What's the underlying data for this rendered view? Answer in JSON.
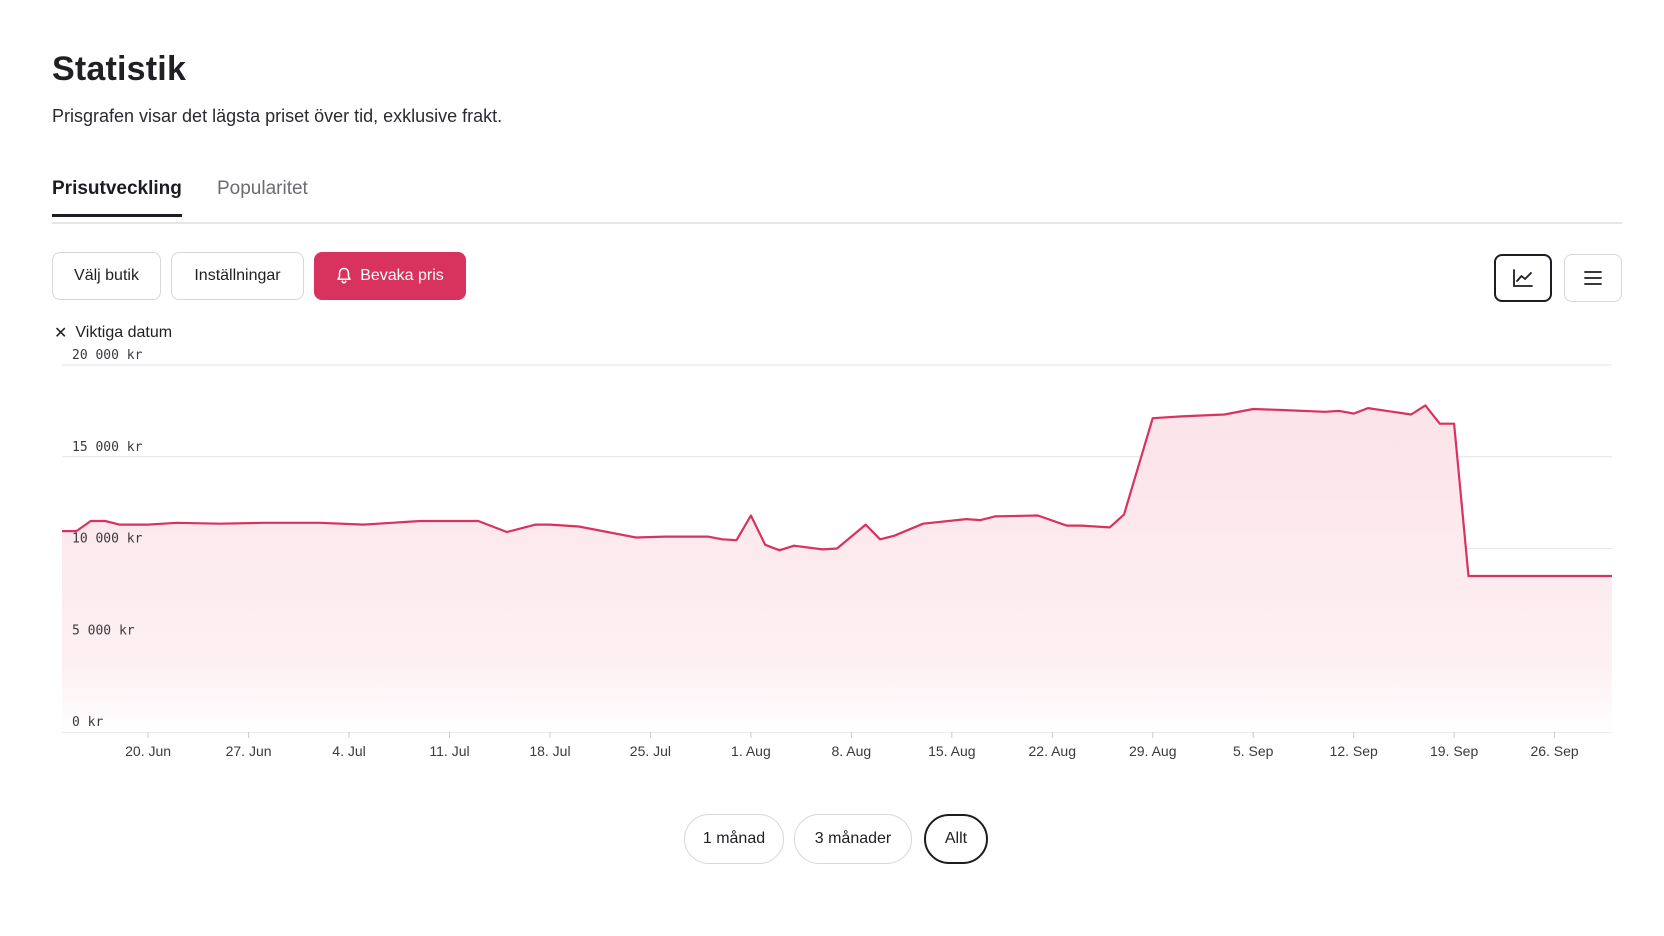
{
  "header": {
    "title": "Statistik",
    "subtitle": "Prisgrafen visar det lägsta priset över tid, exklusive frakt."
  },
  "tabs": [
    {
      "label": "Prisutveckling",
      "active": true
    },
    {
      "label": "Popularitet",
      "active": false
    }
  ],
  "toolbar": {
    "store_label": "Välj butik",
    "settings_label": "Inställningar",
    "watch_label": "Bevaka pris",
    "watch_color": "#d8335f",
    "view_icons": [
      "line-chart-icon",
      "list-icon"
    ],
    "active_view": "line-chart-icon"
  },
  "legend_toggle": {
    "icon": "close-icon",
    "label": "Viktiga datum"
  },
  "chart_data": {
    "type": "area",
    "color": "#d8335f",
    "fill_color": "#fbe4ea",
    "grid": true,
    "ylim": [
      0,
      20000
    ],
    "y_ticks": [
      0,
      5000,
      10000,
      15000,
      20000
    ],
    "y_tick_labels": [
      "0 kr",
      "5 000 kr",
      "10 000 kr",
      "15 000 kr",
      "20 000 kr"
    ],
    "x_range": [
      "2023-06-14",
      "2023-09-30"
    ],
    "x_ticks": [
      "2023-06-20",
      "2023-06-27",
      "2023-07-04",
      "2023-07-11",
      "2023-07-18",
      "2023-07-25",
      "2023-08-01",
      "2023-08-08",
      "2023-08-15",
      "2023-08-22",
      "2023-08-29",
      "2023-09-05",
      "2023-09-12",
      "2023-09-19",
      "2023-09-26"
    ],
    "x_tick_labels": [
      "20. Jun",
      "27. Jun",
      "4. Jul",
      "11. Jul",
      "18. Jul",
      "25. Jul",
      "1. Aug",
      "8. Aug",
      "15. Aug",
      "22. Aug",
      "29. Aug",
      "5. Sep",
      "12. Sep",
      "19. Sep",
      "26. Sep"
    ],
    "series": [
      {
        "x": [
          "2023-06-14",
          "2023-06-15",
          "2023-06-16",
          "2023-06-17",
          "2023-06-18",
          "2023-06-20",
          "2023-06-22",
          "2023-06-25",
          "2023-06-28",
          "2023-07-02",
          "2023-07-05",
          "2023-07-07",
          "2023-07-08",
          "2023-07-09",
          "2023-07-13",
          "2023-07-15",
          "2023-07-17",
          "2023-07-18",
          "2023-07-20",
          "2023-07-24",
          "2023-07-26",
          "2023-07-29",
          "2023-07-30",
          "2023-07-31",
          "2023-08-01",
          "2023-08-02",
          "2023-08-03",
          "2023-08-04",
          "2023-08-06",
          "2023-08-07",
          "2023-08-09",
          "2023-08-10",
          "2023-08-11",
          "2023-08-13",
          "2023-08-16",
          "2023-08-17",
          "2023-08-18",
          "2023-08-21",
          "2023-08-23",
          "2023-08-24",
          "2023-08-25",
          "2023-08-26",
          "2023-08-27",
          "2023-08-29",
          "2023-08-31",
          "2023-09-03",
          "2023-09-05",
          "2023-09-07",
          "2023-09-10",
          "2023-09-11",
          "2023-09-12",
          "2023-09-13",
          "2023-09-16",
          "2023-09-17",
          "2023-09-18",
          "2023-09-19",
          "2023-09-20",
          "2023-09-30"
        ],
        "values": [
          10950,
          10950,
          11500,
          11500,
          11300,
          11300,
          11400,
          11350,
          11400,
          11400,
          11300,
          11400,
          11450,
          11500,
          11500,
          10900,
          11300,
          11300,
          11200,
          10600,
          10650,
          10650,
          10500,
          10450,
          11800,
          10200,
          9900,
          10150,
          9950,
          10000,
          11300,
          10500,
          10700,
          11350,
          11600,
          11550,
          11750,
          11800,
          11250,
          11250,
          11200,
          11150,
          11850,
          17100,
          17200,
          17300,
          17600,
          17550,
          17450,
          17500,
          17350,
          17650,
          17300,
          17800,
          16800,
          16800,
          8500,
          8500
        ]
      }
    ]
  },
  "period_buttons": [
    {
      "label": "1 månad",
      "active": false
    },
    {
      "label": "3 månader",
      "active": false
    },
    {
      "label": "Allt",
      "active": true
    }
  ]
}
